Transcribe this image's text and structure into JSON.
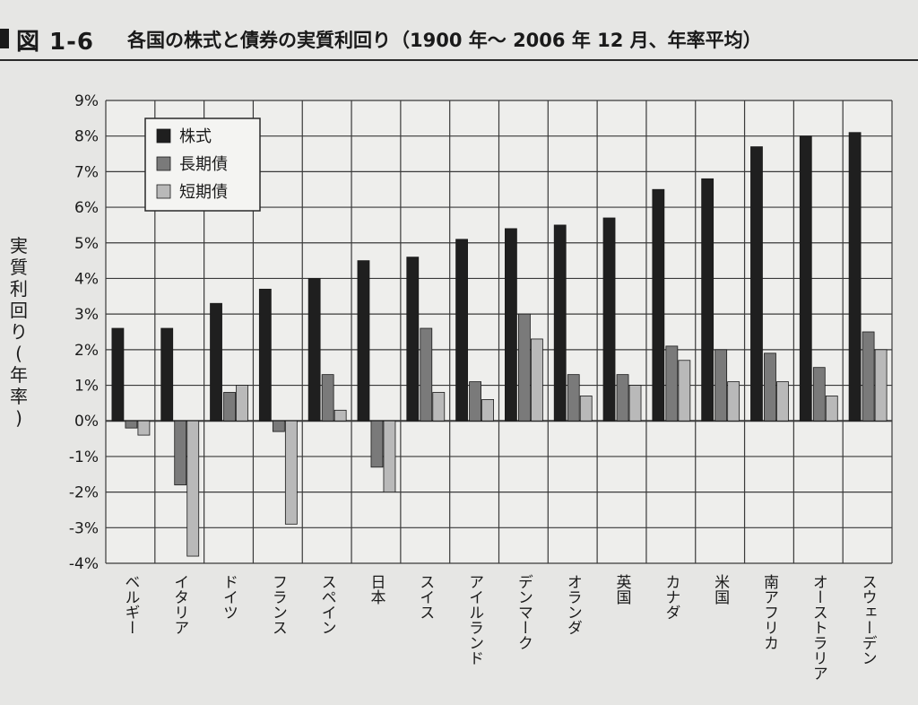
{
  "header": {
    "figure_label": "図 1-6",
    "title": "各国の株式と債券の実質利回り（1900 年～ 2006 年 12 月、年率平均）"
  },
  "chart_data": {
    "type": "bar",
    "title": "各国の株式と債券の実質利回り（1900 年～ 2006 年 12 月、年率平均）",
    "ylabel": "実質利回り(年率)",
    "xlabel": "",
    "ylim": [
      -4,
      9
    ],
    "yticks": [
      "9%",
      "8%",
      "7%",
      "6%",
      "5%",
      "4%",
      "3%",
      "2%",
      "1%",
      "0%",
      "-1%",
      "-2%",
      "-3%",
      "-4%"
    ],
    "grid": true,
    "legend_position": "top-left",
    "categories": [
      "ベルギー",
      "イタリア",
      "ドイツ",
      "フランス",
      "スペイン",
      "日本",
      "スイス",
      "アイルランド",
      "デンマーク",
      "オランダ",
      "英国",
      "カナダ",
      "米国",
      "南アフリカ",
      "オーストラリア",
      "スウェーデン"
    ],
    "series": [
      {
        "name": "株式",
        "color": "#1f1f1f",
        "values": [
          2.6,
          2.6,
          3.3,
          3.7,
          4.0,
          4.5,
          4.6,
          5.1,
          5.4,
          5.5,
          5.7,
          6.5,
          6.8,
          7.7,
          8.0,
          8.1
        ]
      },
      {
        "name": "長期債",
        "color": "#7a7a7a",
        "values": [
          -0.2,
          -1.8,
          0.8,
          -0.3,
          1.3,
          -1.3,
          2.6,
          1.1,
          3.0,
          1.3,
          1.3,
          2.1,
          2.0,
          1.9,
          1.5,
          2.5
        ]
      },
      {
        "name": "短期債",
        "color": "#b9b9b9",
        "values": [
          -0.4,
          -3.8,
          1.0,
          -2.9,
          0.3,
          -2.0,
          0.8,
          0.6,
          2.3,
          0.7,
          1.0,
          1.7,
          1.1,
          1.1,
          0.7,
          2.0
        ]
      }
    ]
  }
}
